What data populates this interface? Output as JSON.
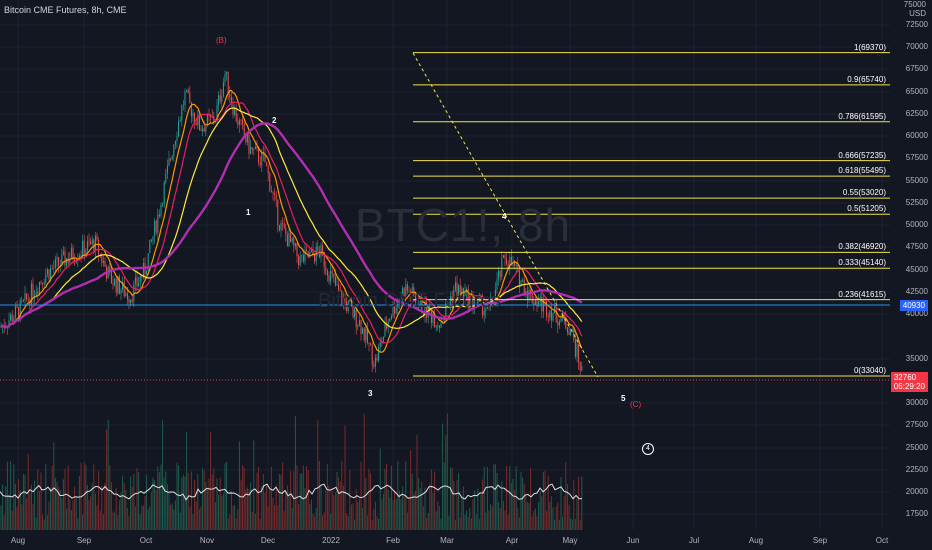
{
  "title": "Bitcoin CME Futures, 8h, CME",
  "watermark": "BTC1!, 8h",
  "watermark_sub": "Bitcoin CME Futures",
  "axis": {
    "unit_top": "75000",
    "unit_label": "USD",
    "y_ticks": [
      "72500",
      "70000",
      "67500",
      "65000",
      "62500",
      "60000",
      "57500",
      "55000",
      "52500",
      "50000",
      "47500",
      "45000",
      "42500",
      "40000",
      "35000",
      "30000",
      "27500",
      "25000",
      "22500",
      "20000",
      "17500"
    ],
    "x_ticks": [
      "Aug",
      "Sep",
      "Oct",
      "Nov",
      "Dec",
      "2022",
      "Feb",
      "Mar",
      "Apr",
      "May",
      "Jun",
      "Jul",
      "Aug",
      "Sep",
      "Oct"
    ]
  },
  "price_badges": {
    "blue": "40930",
    "red_price": "32760",
    "red_timer": "06:29:20"
  },
  "fib_levels": [
    {
      "label": "1(69370)",
      "price": 69370
    },
    {
      "label": "0.9(65740)",
      "price": 65740
    },
    {
      "label": "0.786(61595)",
      "price": 61595
    },
    {
      "label": "0.666(57235)",
      "price": 57235
    },
    {
      "label": "0.618(55495)",
      "price": 55495
    },
    {
      "label": "0.55(53020)",
      "price": 53020
    },
    {
      "label": "0.5(51205)",
      "price": 51205
    },
    {
      "label": "0.382(46920)",
      "price": 46920
    },
    {
      "label": "0.333(45140)",
      "price": 45140
    },
    {
      "label": "0.236(41615)",
      "price": 41615
    },
    {
      "label": "0(33040)",
      "price": 33040
    }
  ],
  "wave_labels": {
    "b": "(B)",
    "one": "1",
    "two": "2",
    "three": "3",
    "four": "4",
    "five": "5",
    "c": "(C)",
    "circle_four": "4"
  },
  "colors": {
    "background": "#131722",
    "fib_line": "#f2e24b",
    "up_candle": "#26a69a",
    "down_candle": "#ef5350",
    "ma_orange": "#ff9800",
    "ma_red": "#e91e63",
    "ma_yellow": "#ffeb3b",
    "ma_purple": "#b02fb0",
    "horizontal_blue": "#2196f3"
  },
  "chart_data": {
    "type": "line",
    "title": "Bitcoin CME Futures, 8h, CME",
    "x": [
      "Aug",
      "Sep",
      "Oct",
      "Nov",
      "Dec",
      "2022",
      "Feb",
      "Mar",
      "Apr",
      "May"
    ],
    "series": [
      {
        "name": "",
        "values": [
          40000,
          47000,
          44000,
          63000,
          57000,
          47000,
          38000,
          39000,
          46000,
          40000
        ]
      }
    ],
    "ylim": [
      15000,
      75000
    ],
    "price_current": 32760,
    "horizontal_line": 40930
  }
}
